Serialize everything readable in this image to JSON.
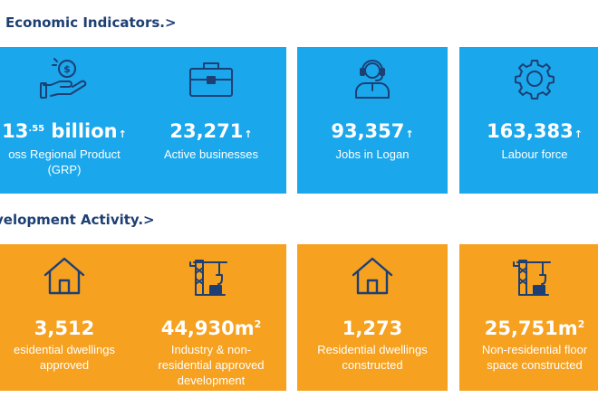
{
  "sections": {
    "economic_title": "Economic Indicators.>",
    "development_title": "velopment Activity.>"
  },
  "economic": [
    {
      "icon": "money-hand-icon",
      "value_main": "13",
      "value_sup": ".55",
      "value_suffix": " billion",
      "arrow": "↑",
      "label": "oss Regional Product\n(GRP)"
    },
    {
      "icon": "briefcase-icon",
      "value_main": "23,271",
      "arrow": "↑",
      "label": "Active businesses"
    },
    {
      "icon": "worker-headset-icon",
      "value_main": "93,357",
      "arrow": "↑",
      "label": "Jobs in Logan"
    },
    {
      "icon": "gear-icon",
      "value_main": "163,383",
      "arrow": "↑",
      "label": "Labour force"
    }
  ],
  "development": [
    {
      "icon": "house-icon",
      "value_main": "3,512",
      "label": "esidential dwellings\napproved"
    },
    {
      "icon": "crane-icon",
      "value_main": "44,930m",
      "unit_sup": "2",
      "label": "Industry & non-\nresidential approved\ndevelopment"
    },
    {
      "icon": "house-icon",
      "value_main": "1,273",
      "label": "Residential dwellings\nconstructed"
    },
    {
      "icon": "crane-icon",
      "value_main": "25,751m",
      "unit_sup": "2",
      "label": "Non-residential floor\nspace constructed"
    }
  ],
  "colors": {
    "blue_tile": "#1aa7ec",
    "orange_tile": "#f6a11f",
    "title": "#1d3f73",
    "icon_stroke": "#1d3f73"
  }
}
